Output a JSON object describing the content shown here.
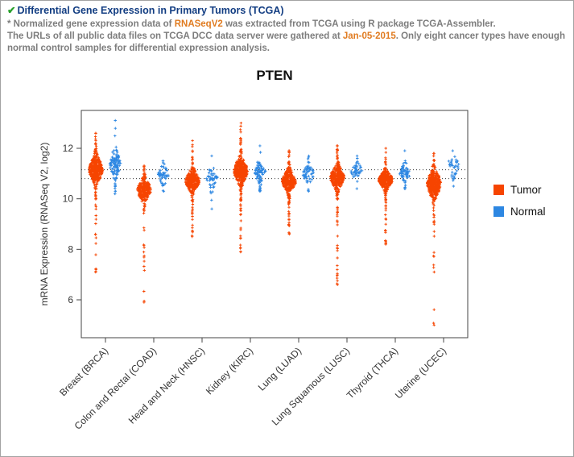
{
  "header": {
    "check": "✔",
    "title": "Differential Gene Expression in Primary Tumors (TCGA)",
    "note1_prefix": "* Normalized gene expression data of ",
    "note1_highlight": "RNASeqV2",
    "note1_suffix": " was extracted from TCGA using R package TCGA-Assembler.",
    "note2_prefix": "The URLs of all public data files on TCGA DCC data server were gathered at ",
    "note2_highlight": "Jan-05-2015",
    "note2_suffix": ". Only eight cancer types have enough normal control samples for differential expression analysis."
  },
  "palette": {
    "title_blue": "#123d82",
    "note_gray": "#7d7d7d",
    "highlight_orange": "#e07b20",
    "check_green": "#27a02a",
    "tumor_color": "#F64400",
    "normal_color": "#2D87E2"
  },
  "chart_data": {
    "type": "violin-strip",
    "title": "PTEN",
    "ylabel": "mRNA Expression (RNASeq V2, log2)",
    "ylim": [
      4.5,
      13.5
    ],
    "yticks": [
      6,
      8,
      10,
      12
    ],
    "hlines": [
      11.15,
      10.8
    ],
    "grid": false,
    "legend_position": "right",
    "colors": {
      "tumor": "#F64400",
      "normal": "#2D87E2"
    },
    "legend": [
      {
        "label": "Tumor",
        "color": "#F64400"
      },
      {
        "label": "Normal",
        "color": "#2D87E2"
      }
    ],
    "categories": [
      {
        "label": "Breast (BRCA)",
        "tumor": {
          "median": 11.15,
          "q1": 10.85,
          "q3": 11.45,
          "min": 7.1,
          "max": 12.6,
          "n": 380
        },
        "normal": {
          "median": 11.4,
          "q1": 11.1,
          "q3": 11.7,
          "min": 10.2,
          "max": 13.1,
          "n": 110
        }
      },
      {
        "label": "Colon and Rectal (COAD)",
        "tumor": {
          "median": 10.35,
          "q1": 10.1,
          "q3": 10.6,
          "min": 5.9,
          "max": 11.3,
          "n": 300
        },
        "normal": {
          "median": 10.95,
          "q1": 10.75,
          "q3": 11.15,
          "min": 10.3,
          "max": 11.5,
          "n": 50
        }
      },
      {
        "label": "Head and Neck (HNSC)",
        "tumor": {
          "median": 10.7,
          "q1": 10.45,
          "q3": 10.95,
          "min": 8.5,
          "max": 12.3,
          "n": 350
        },
        "normal": {
          "median": 10.8,
          "q1": 10.55,
          "q3": 11.05,
          "min": 9.6,
          "max": 11.7,
          "n": 45
        }
      },
      {
        "label": "Kidney (KIRC)",
        "tumor": {
          "median": 11.1,
          "q1": 10.8,
          "q3": 11.4,
          "min": 7.9,
          "max": 13.0,
          "n": 400
        },
        "normal": {
          "median": 11.1,
          "q1": 10.85,
          "q3": 11.35,
          "min": 10.3,
          "max": 12.1,
          "n": 70
        }
      },
      {
        "label": "Lung (LUAD)",
        "tumor": {
          "median": 10.7,
          "q1": 10.45,
          "q3": 10.95,
          "min": 8.6,
          "max": 11.9,
          "n": 350
        },
        "normal": {
          "median": 11.0,
          "q1": 10.75,
          "q3": 11.2,
          "min": 10.3,
          "max": 11.7,
          "n": 58
        }
      },
      {
        "label": "Lung Squamous (LUSC)",
        "tumor": {
          "median": 10.85,
          "q1": 10.55,
          "q3": 11.1,
          "min": 6.6,
          "max": 12.1,
          "n": 350
        },
        "normal": {
          "median": 11.1,
          "q1": 10.9,
          "q3": 11.3,
          "min": 10.4,
          "max": 11.7,
          "n": 45
        }
      },
      {
        "label": "Thyroid (THCA)",
        "tumor": {
          "median": 10.75,
          "q1": 10.55,
          "q3": 10.95,
          "min": 8.2,
          "max": 12.0,
          "n": 380
        },
        "normal": {
          "median": 11.05,
          "q1": 10.85,
          "q3": 11.25,
          "min": 10.4,
          "max": 11.9,
          "n": 59
        }
      },
      {
        "label": "Uterine (UCEC)",
        "tumor": {
          "median": 10.6,
          "q1": 10.25,
          "q3": 10.9,
          "min": 5.0,
          "max": 11.8,
          "n": 380
        },
        "normal": {
          "median": 11.3,
          "q1": 11.05,
          "q3": 11.55,
          "min": 10.5,
          "max": 11.9,
          "n": 35
        }
      }
    ]
  }
}
